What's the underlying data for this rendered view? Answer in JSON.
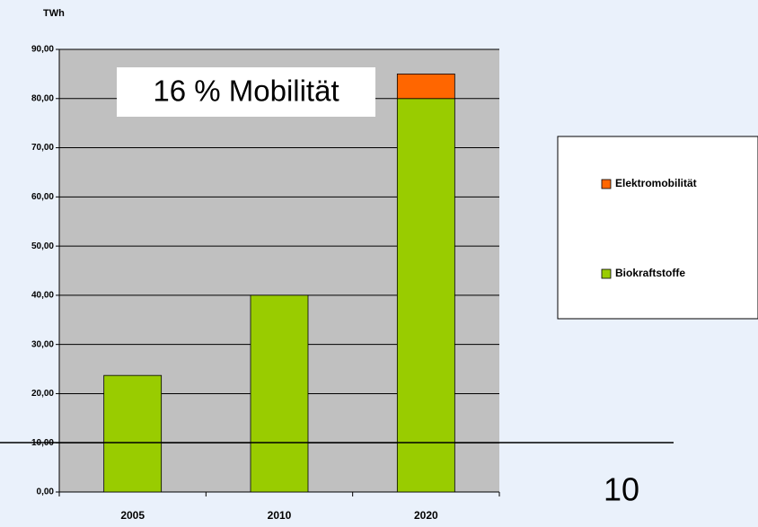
{
  "chart_data": {
    "type": "bar",
    "stacked": true,
    "y_axis_label": "TWh",
    "annotation": "16 % Mobilität",
    "slide_number": "10",
    "categories": [
      "2005",
      "2010",
      "2020"
    ],
    "series": [
      {
        "name": "Biokraftstoffe",
        "color": "#99cc00",
        "values": [
          23.7,
          40,
          80
        ]
      },
      {
        "name": "Elektromobilität",
        "color": "#ff6600",
        "values": [
          null,
          null,
          5
        ]
      }
    ],
    "ylim": [
      0,
      90
    ],
    "yticks": [
      {
        "value": 0,
        "label": "0,00"
      },
      {
        "value": 10,
        "label": "10,00"
      },
      {
        "value": 20,
        "label": "20,00"
      },
      {
        "value": 30,
        "label": "30,00"
      },
      {
        "value": 40,
        "label": "40,00"
      },
      {
        "value": 50,
        "label": "50,00"
      },
      {
        "value": 60,
        "label": "60,00"
      },
      {
        "value": 70,
        "label": "70,00"
      },
      {
        "value": 80,
        "label": "80,00"
      },
      {
        "value": 90,
        "label": "90,00"
      }
    ],
    "grid": true,
    "legend": "right"
  }
}
